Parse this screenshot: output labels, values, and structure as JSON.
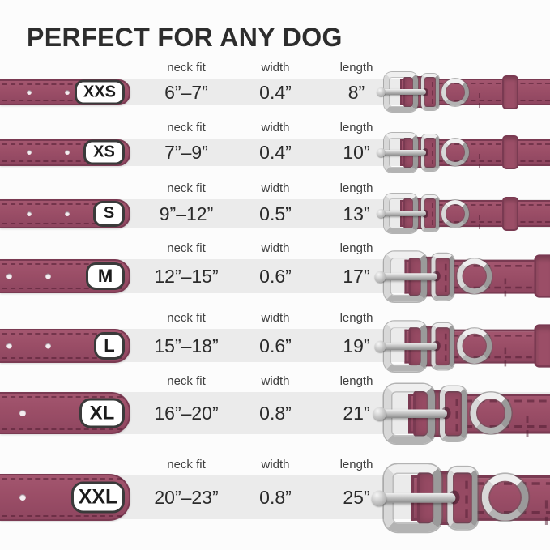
{
  "title": "PERFECT FOR ANY DOG",
  "table": {
    "columns": {
      "neck": "neck fit",
      "width": "width",
      "length": "length"
    },
    "rows": [
      {
        "size": "XXS",
        "neck_fit": "6”–7”",
        "width": "0.4”",
        "length": "8”"
      },
      {
        "size": "XS",
        "neck_fit": "7”–9”",
        "width": "0.4”",
        "length": "10”"
      },
      {
        "size": "S",
        "neck_fit": "9”–12”",
        "width": "0.5”",
        "length": "13”"
      },
      {
        "size": "M",
        "neck_fit": "12”–15”",
        "width": "0.6”",
        "length": "17”"
      },
      {
        "size": "L",
        "neck_fit": "15”–18”",
        "width": "0.6”",
        "length": "19”"
      },
      {
        "size": "XL",
        "neck_fit": "16”–20”",
        "width": "0.8”",
        "length": "21”"
      },
      {
        "size": "XXL",
        "neck_fit": "20”–23”",
        "width": "0.8”",
        "length": "25”"
      }
    ]
  },
  "colors": {
    "collar": "#9b4e67",
    "collar_border": "#7a3a52",
    "row_band": "#ebebeb",
    "background": "#fcfcfc",
    "metal_hardware": "#c9c9c9",
    "title_text": "#2d2d2d"
  },
  "chart_data": {
    "type": "table",
    "title": "PERFECT FOR ANY DOG",
    "columns": [
      "size",
      "neck fit",
      "width",
      "length"
    ],
    "rows": [
      [
        "XXS",
        "6”–7”",
        "0.4”",
        "8”"
      ],
      [
        "XS",
        "7”–9”",
        "0.4”",
        "10”"
      ],
      [
        "S",
        "9”–12”",
        "0.5”",
        "13”"
      ],
      [
        "M",
        "12”–15”",
        "0.6”",
        "17”"
      ],
      [
        "L",
        "15”–18”",
        "0.6”",
        "19”"
      ],
      [
        "XL",
        "16”–20”",
        "0.8”",
        "21”"
      ],
      [
        "XXL",
        "20”–23”",
        "0.8”",
        "25”"
      ]
    ]
  }
}
